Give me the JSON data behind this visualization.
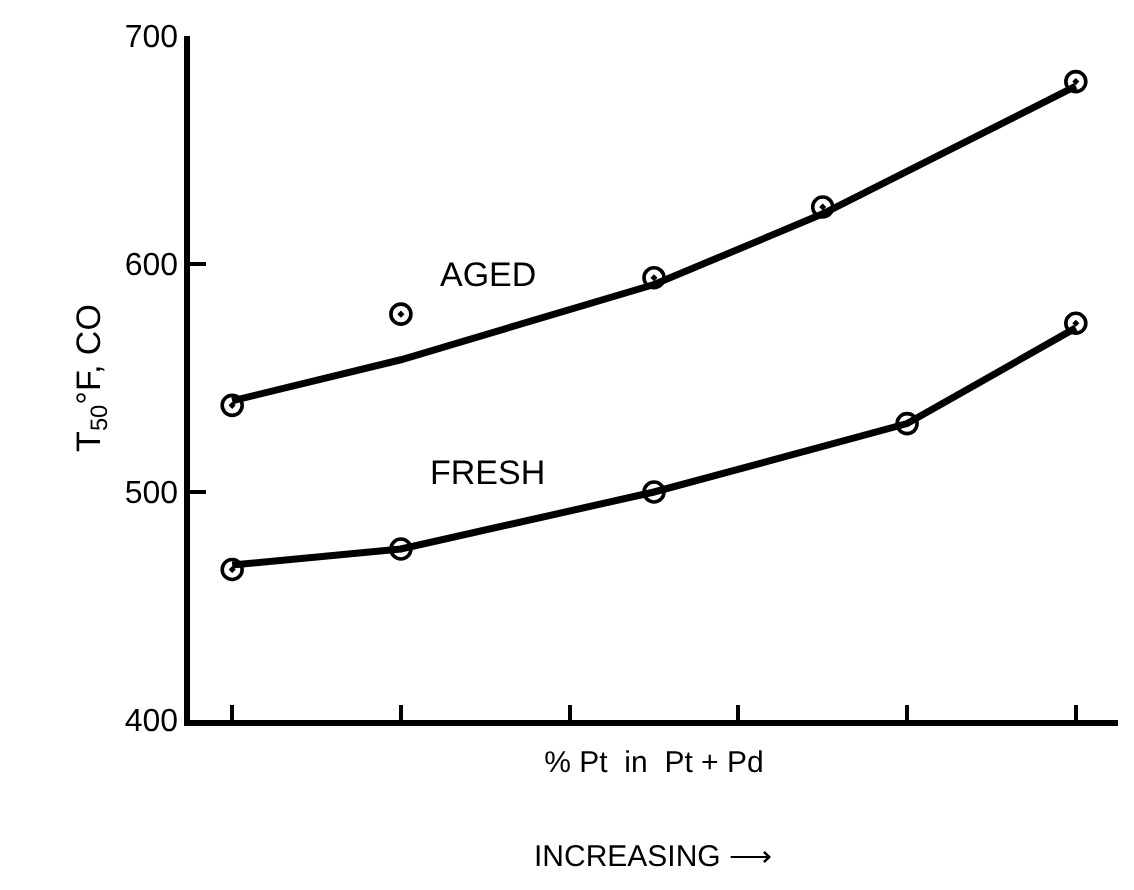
{
  "chart_data": {
    "type": "scatter",
    "xlabel": "% Pt  in  Pt + Pd",
    "ylabel": "T$_{50}$°F, CO",
    "annotations": [
      "INCREASING ⟶"
    ],
    "categories": [
      null,
      null,
      null,
      null,
      null,
      null,
      null,
      null,
      null,
      null,
      null
    ],
    "ylim": [
      400,
      700
    ],
    "yticks": [
      400,
      500,
      600,
      700
    ],
    "series": [
      {
        "color": "#000000",
        "marker": "circle",
        "values": [
          538,
          null,
          578,
          null,
          null,
          594,
          null,
          625,
          null,
          null,
          680
        ]
      },
      {
        "color": "#000000",
        "marker": "circle",
        "values": [
          466,
          null,
          475,
          null,
          null,
          500,
          null,
          null,
          530,
          null,
          574
        ]
      },
      {
        "type": "line",
        "name": "AGED",
        "color": "#000000",
        "marker": "none",
        "values": [
          540,
          null,
          558,
          null,
          null,
          591,
          null,
          622,
          null,
          null,
          678
        ]
      },
      {
        "type": "line",
        "name": "FRESH",
        "color": "#000000",
        "marker": "none",
        "values": [
          468,
          null,
          475,
          null,
          null,
          500,
          null,
          null,
          530,
          null,
          572
        ]
      }
    ]
  }
}
